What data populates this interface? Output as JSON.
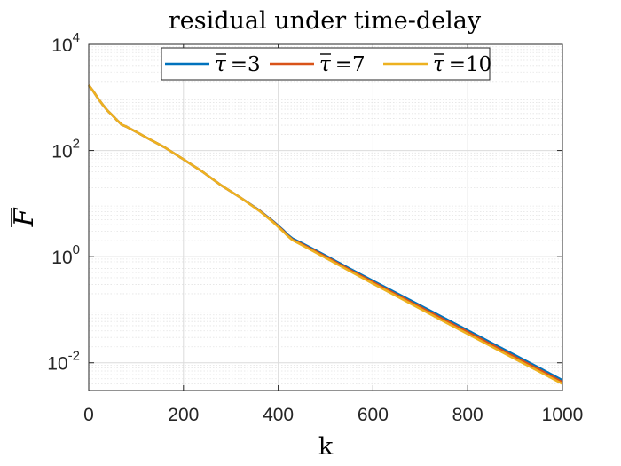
{
  "chart_data": {
    "type": "line",
    "title": "residual under time-delay",
    "xlabel": "k",
    "ylabel": "F",
    "xlim": [
      0,
      1000
    ],
    "ylim": [
      0.003,
      10000
    ],
    "yscale": "log",
    "grid": true,
    "minor_grid": true,
    "legend_position": "top",
    "x_ticks": [
      0,
      200,
      400,
      600,
      800,
      1000
    ],
    "y_ticks": [
      {
        "base": "10",
        "exp": "-2",
        "value": 0.01
      },
      {
        "base": "10",
        "exp": "0",
        "value": 1
      },
      {
        "base": "10",
        "exp": "2",
        "value": 100
      },
      {
        "base": "10",
        "exp": "4",
        "value": 10000
      }
    ],
    "series": [
      {
        "name": "τ̄ =3",
        "legend_symbol": "τ",
        "legend_value": "=3",
        "color": "#0072BD",
        "x": [
          0,
          10,
          20,
          30,
          40,
          50,
          60,
          70,
          80,
          100,
          130,
          160,
          200,
          240,
          280,
          320,
          360,
          390,
          410,
          420,
          430,
          450,
          500,
          550,
          600,
          650,
          700,
          750,
          800,
          850,
          900,
          950,
          1000
        ],
        "y": [
          1700,
          1300,
          950,
          720,
          560,
          460,
          370,
          305,
          280,
          225,
          160,
          115,
          68,
          40,
          22,
          13,
          7.5,
          4.6,
          3.2,
          2.6,
          2.2,
          1.8,
          1.05,
          0.6,
          0.35,
          0.205,
          0.12,
          0.07,
          0.041,
          0.0238,
          0.0139,
          0.0081,
          0.0047
        ]
      },
      {
        "name": "τ̄ =7",
        "legend_symbol": "τ",
        "legend_value": "=7",
        "color": "#D95319",
        "x": [
          0,
          10,
          20,
          30,
          40,
          50,
          60,
          70,
          80,
          100,
          130,
          160,
          200,
          240,
          280,
          320,
          360,
          390,
          410,
          420,
          430,
          450,
          500,
          550,
          600,
          650,
          700,
          750,
          800,
          850,
          900,
          950,
          1000
        ],
        "y": [
          1700,
          1300,
          950,
          720,
          560,
          460,
          370,
          305,
          280,
          225,
          160,
          115,
          68,
          40,
          22,
          13,
          7.4,
          4.5,
          3.1,
          2.5,
          2.1,
          1.72,
          1.0,
          0.57,
          0.33,
          0.192,
          0.112,
          0.065,
          0.038,
          0.022,
          0.0128,
          0.0075,
          0.0043
        ]
      },
      {
        "name": "τ̄ =10",
        "legend_symbol": "τ",
        "legend_value": "=10",
        "color": "#EDB120",
        "x": [
          0,
          10,
          20,
          30,
          40,
          50,
          60,
          70,
          80,
          100,
          130,
          160,
          200,
          240,
          280,
          320,
          360,
          390,
          410,
          420,
          430,
          450,
          500,
          550,
          600,
          650,
          700,
          750,
          800,
          850,
          900,
          950,
          1000
        ],
        "y": [
          1700,
          1300,
          950,
          720,
          560,
          460,
          370,
          305,
          280,
          225,
          160,
          115,
          68,
          40,
          22,
          13,
          7.3,
          4.4,
          3.0,
          2.45,
          2.05,
          1.65,
          0.95,
          0.54,
          0.31,
          0.18,
          0.104,
          0.06,
          0.035,
          0.0203,
          0.0118,
          0.0069,
          0.004
        ]
      }
    ]
  }
}
